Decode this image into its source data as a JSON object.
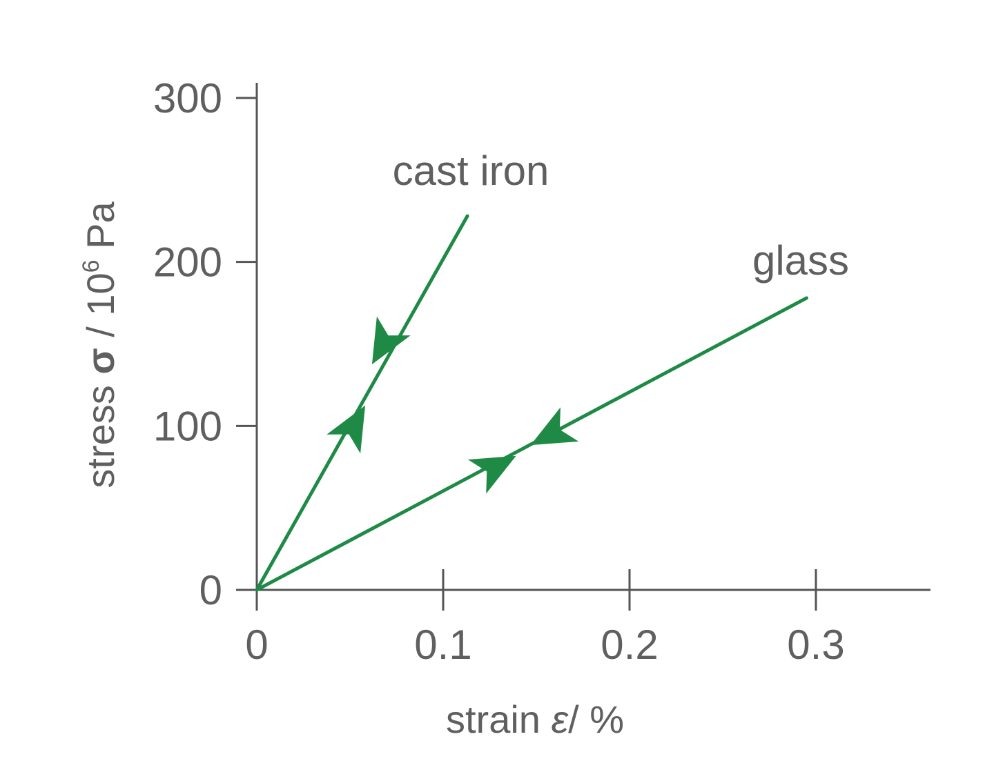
{
  "chart_data": {
    "type": "line",
    "title": "",
    "xlabel": {
      "prefix": "strain ",
      "symbol": "ε",
      "suffix": "/ %"
    },
    "ylabel": {
      "prefix": "stress ",
      "symbol": "σ",
      "unit_base": " / 10",
      "unit_exp": "6",
      "unit_suffix": " Pa"
    },
    "xlim": [
      0,
      0.36
    ],
    "ylim": [
      0,
      300
    ],
    "x_ticks": [
      0,
      0.1,
      0.2,
      0.3
    ],
    "x_tick_labels": [
      "0",
      "0.1",
      "0.2",
      "0.3"
    ],
    "y_ticks": [
      0,
      100,
      200,
      300
    ],
    "y_tick_labels": [
      "0",
      "100",
      "200",
      "300"
    ],
    "grid": false,
    "legend": "none",
    "series": [
      {
        "name": "cast iron",
        "color": "#1e8a45",
        "points": [
          [
            0,
            0
          ],
          [
            0.113,
            228
          ]
        ],
        "arrows": [
          {
            "at": [
              0.052,
              100
            ],
            "direction": "loading"
          },
          {
            "at": [
              0.068,
              150
            ],
            "direction": "unloading"
          }
        ]
      },
      {
        "name": "glass",
        "color": "#1e8a45",
        "points": [
          [
            0,
            0
          ],
          [
            0.295,
            178
          ]
        ],
        "arrows": [
          {
            "at": [
              0.128,
              75
            ],
            "direction": "loading"
          },
          {
            "at": [
              0.158,
              95
            ],
            "direction": "unloading"
          }
        ]
      }
    ]
  }
}
